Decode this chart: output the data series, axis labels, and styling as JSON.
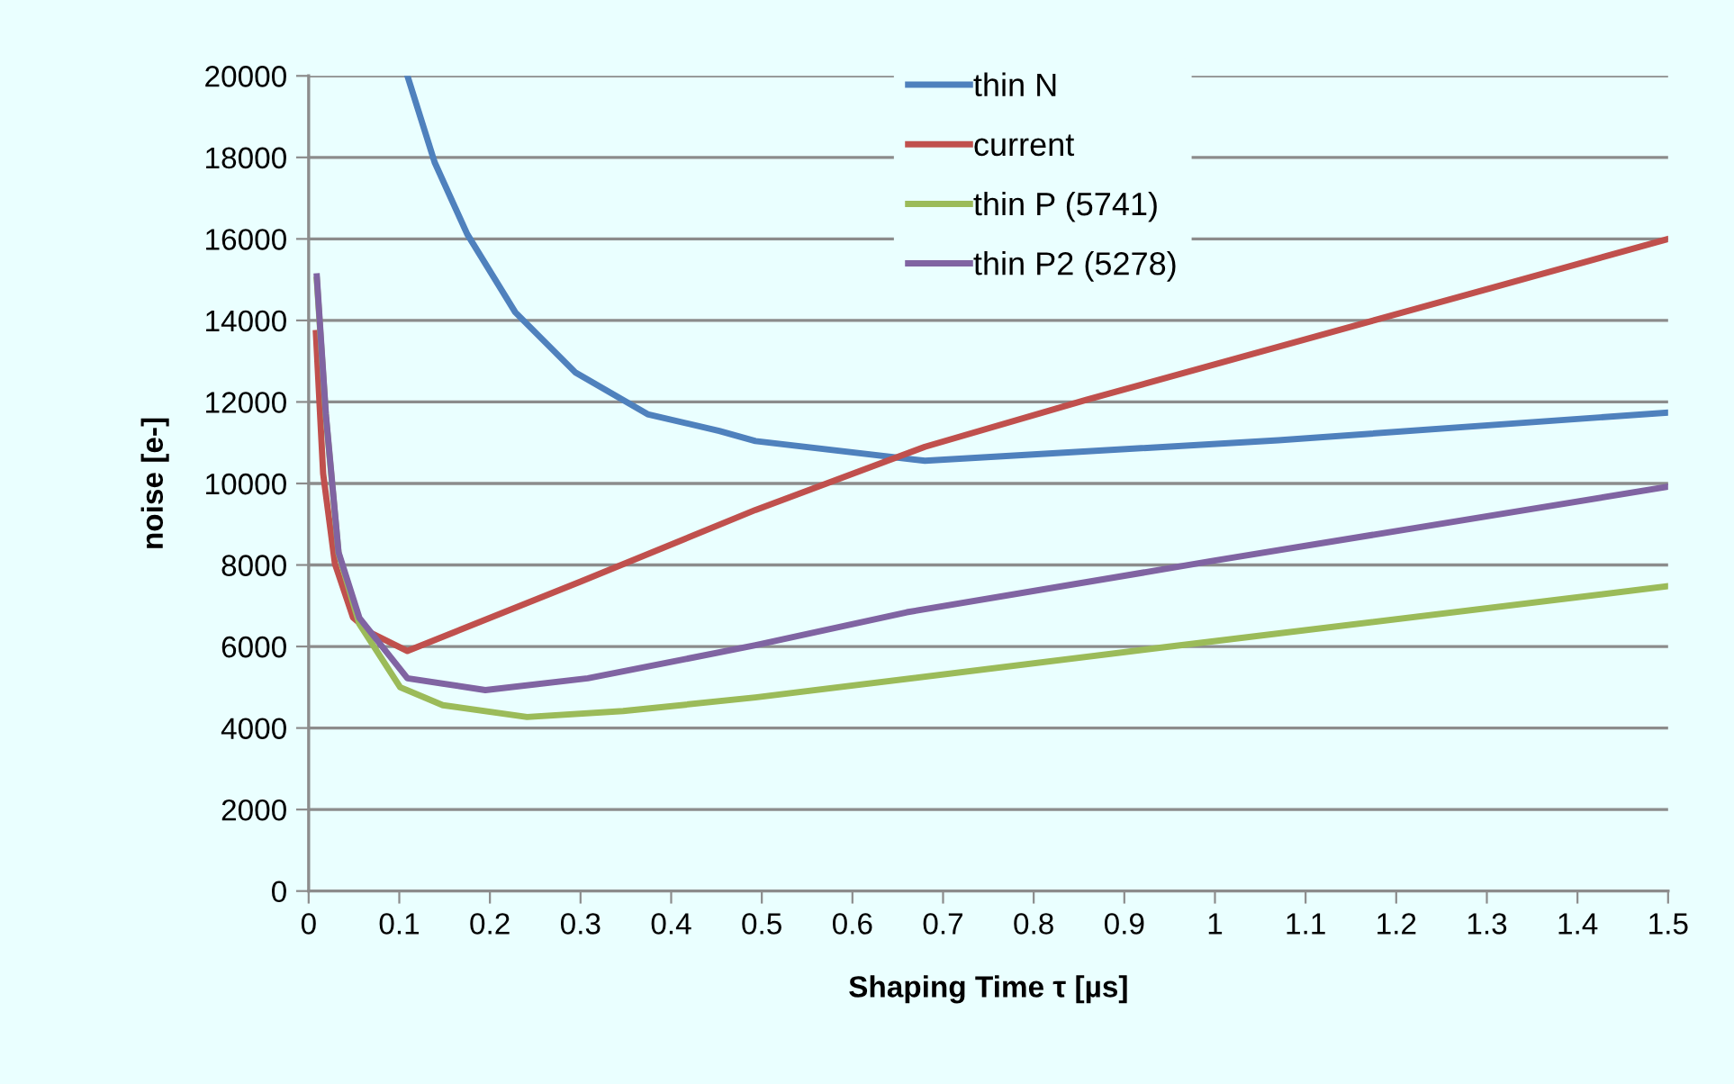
{
  "chart_data": {
    "type": "line",
    "xlabel": "Shaping Time τ [µs]",
    "ylabel": "noise [e-]",
    "series": [
      {
        "name": "thin N",
        "color": "#4f81bd",
        "x": [
          0.109,
          0.139,
          0.175,
          0.228,
          0.294,
          0.374,
          0.453,
          0.493,
          0.68,
          1.07,
          1.5
        ],
        "values": [
          20000,
          17880,
          16115,
          14200,
          12730,
          11700,
          11290,
          11040,
          10557,
          11060,
          11740
        ]
      },
      {
        "name": "current",
        "color": "#c0504d",
        "x": [
          0.008,
          0.016,
          0.029,
          0.049,
          0.069,
          0.109,
          0.3,
          0.493,
          0.68,
          0.858,
          1.304,
          1.5
        ],
        "values": [
          13690,
          10240,
          8030,
          6710,
          6330,
          5890,
          7590,
          9350,
          10900,
          12050,
          14790,
          16000
        ]
      },
      {
        "name": "thin P (5741)",
        "color": "#9bbb59",
        "x": [
          0.009,
          0.019,
          0.033,
          0.056,
          0.101,
          0.148,
          0.241,
          0.347,
          0.493,
          0.947,
          1.5
        ],
        "values": [
          15000,
          11650,
          8280,
          6550,
          5000,
          4560,
          4270,
          4415,
          4750,
          5990,
          7480
        ]
      },
      {
        "name": "thin P2 (5278)",
        "color": "#8064a2",
        "x": [
          0.009,
          0.019,
          0.033,
          0.056,
          0.109,
          0.195,
          0.308,
          0.493,
          0.66,
          0.995,
          1.5
        ],
        "values": [
          15080,
          11700,
          8310,
          6700,
          5220,
          4930,
          5220,
          6030,
          6840,
          8090,
          9920
        ]
      }
    ],
    "xlim": [
      0,
      1.5
    ],
    "xticks": [
      0,
      0.1,
      0.2,
      0.3,
      0.4,
      0.5,
      0.6,
      0.7,
      0.8,
      0.9,
      1,
      1.1,
      1.2,
      1.3,
      1.4,
      1.5
    ],
    "ylim": [
      0,
      20000
    ],
    "yticks": [
      0,
      2000,
      4000,
      6000,
      8000,
      10000,
      12000,
      14000,
      16000,
      18000,
      20000
    ],
    "grid": "y",
    "legend": "top",
    "marker": "none",
    "line_style": "solid"
  }
}
